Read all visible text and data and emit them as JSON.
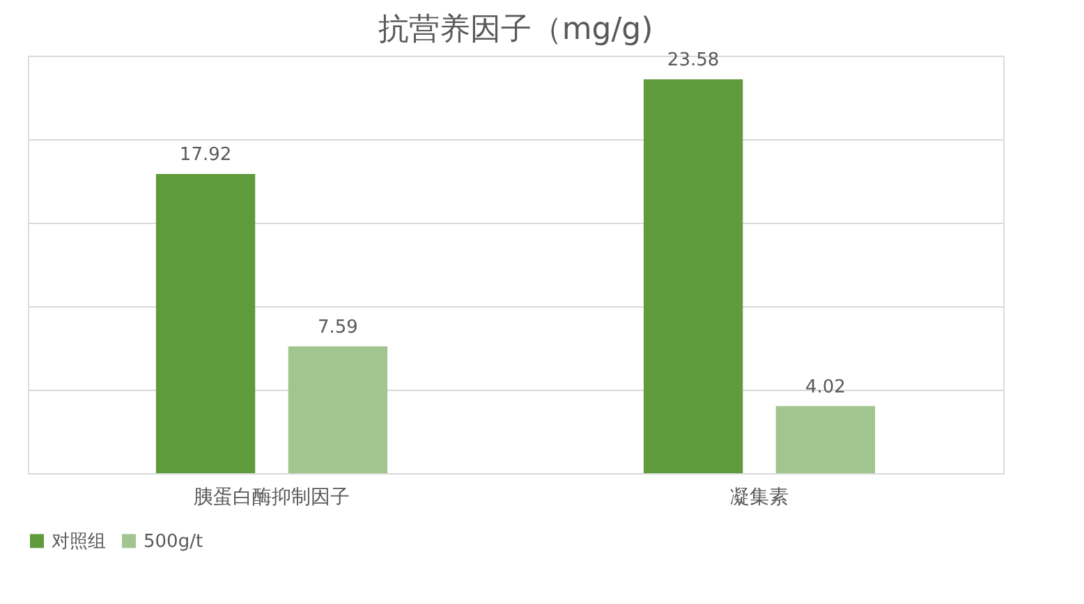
{
  "chart_data": {
    "type": "bar",
    "title": "抗营养因子（mg/g)",
    "categories": [
      "胰蛋白酶抑制因子",
      "凝集素"
    ],
    "series": [
      {
        "name": "对照组",
        "color": "#5f9a3c",
        "values": [
          17.92,
          23.58
        ]
      },
      {
        "name": "500g/t",
        "color": "#a2c58f",
        "values": [
          7.59,
          4.02
        ]
      }
    ],
    "ylim": [
      0,
      25
    ],
    "yticks": [
      {
        "value": 0,
        "label": null
      },
      {
        "value": 5,
        "label": null
      },
      {
        "value": 10,
        "label": null
      },
      {
        "value": 15,
        "label": null
      },
      {
        "value": 20,
        "label": null
      },
      {
        "value": 25,
        "label": null
      }
    ],
    "grid": "y",
    "legend": "bottom",
    "data_labels": true,
    "tick_labels": "x"
  }
}
